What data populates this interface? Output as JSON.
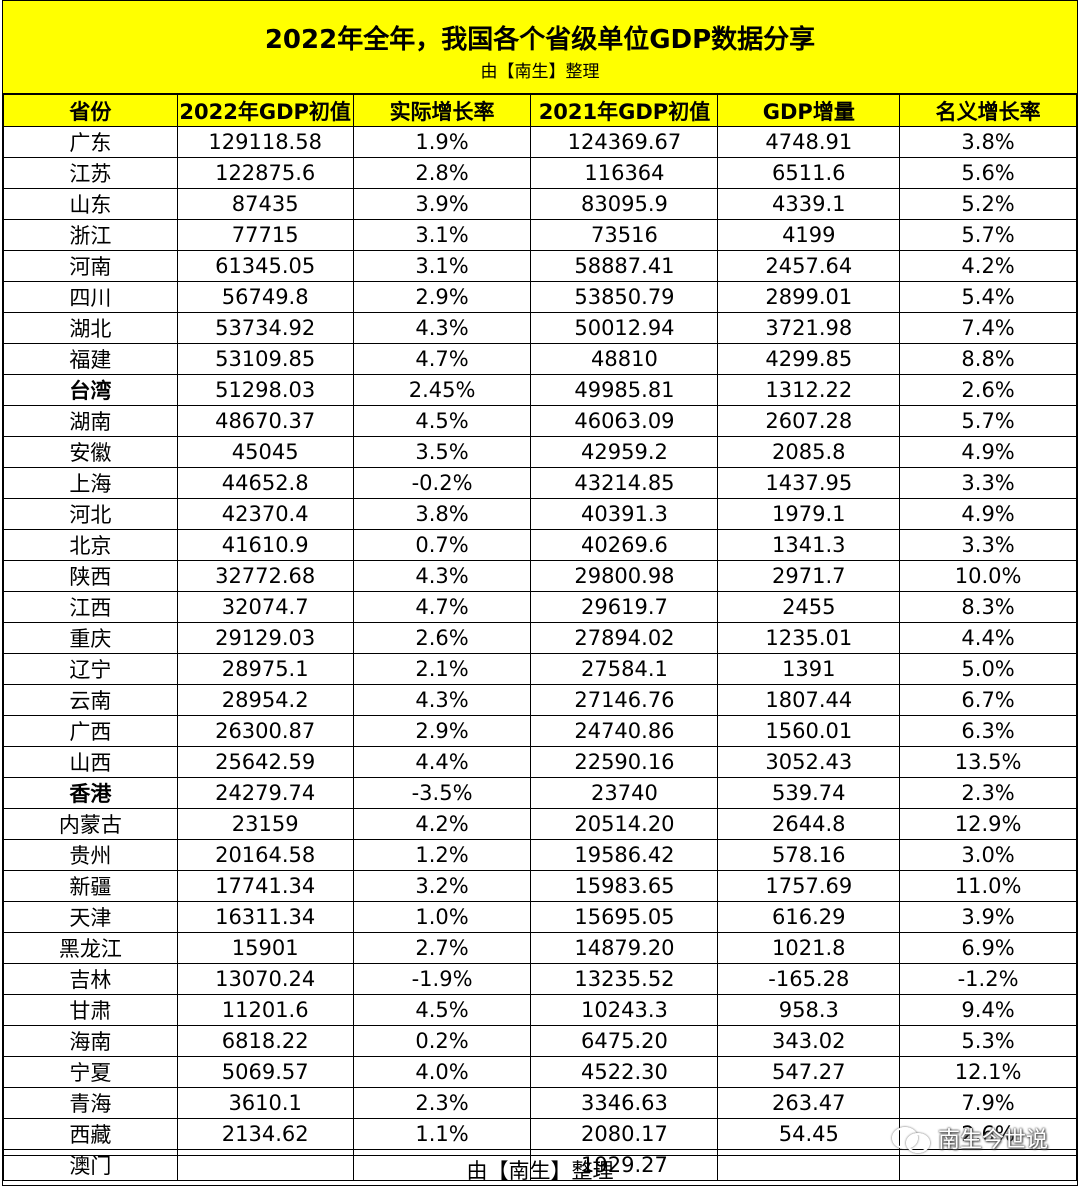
{
  "title": "2022年全年，我国各个省级单位GDP数据分享",
  "subtitle": "由【南生】整理",
  "columns": [
    "省份",
    "2022年GDP初值",
    "实际增长率",
    "2021年GDP初值",
    "GDP增量",
    "名义增长率"
  ],
  "rows": [
    {
      "province": "广东",
      "gdp2022": "129118.58",
      "real_growth": "1.9%",
      "gdp2021": "124369.67",
      "increase": "4748.91",
      "nominal_growth": "3.8%",
      "bold": false
    },
    {
      "province": "江苏",
      "gdp2022": "122875.6",
      "real_growth": "2.8%",
      "gdp2021": "116364",
      "increase": "6511.6",
      "nominal_growth": "5.6%",
      "bold": false
    },
    {
      "province": "山东",
      "gdp2022": "87435",
      "real_growth": "3.9%",
      "gdp2021": "83095.9",
      "increase": "4339.1",
      "nominal_growth": "5.2%",
      "bold": false
    },
    {
      "province": "浙江",
      "gdp2022": "77715",
      "real_growth": "3.1%",
      "gdp2021": "73516",
      "increase": "4199",
      "nominal_growth": "5.7%",
      "bold": false
    },
    {
      "province": "河南",
      "gdp2022": "61345.05",
      "real_growth": "3.1%",
      "gdp2021": "58887.41",
      "increase": "2457.64",
      "nominal_growth": "4.2%",
      "bold": false
    },
    {
      "province": "四川",
      "gdp2022": "56749.8",
      "real_growth": "2.9%",
      "gdp2021": "53850.79",
      "increase": "2899.01",
      "nominal_growth": "5.4%",
      "bold": false
    },
    {
      "province": "湖北",
      "gdp2022": "53734.92",
      "real_growth": "4.3%",
      "gdp2021": "50012.94",
      "increase": "3721.98",
      "nominal_growth": "7.4%",
      "bold": false
    },
    {
      "province": "福建",
      "gdp2022": "53109.85",
      "real_growth": "4.7%",
      "gdp2021": "48810",
      "increase": "4299.85",
      "nominal_growth": "8.8%",
      "bold": false
    },
    {
      "province": "台湾",
      "gdp2022": "51298.03",
      "real_growth": "2.45%",
      "gdp2021": "49985.81",
      "increase": "1312.22",
      "nominal_growth": "2.6%",
      "bold": true
    },
    {
      "province": "湖南",
      "gdp2022": "48670.37",
      "real_growth": "4.5%",
      "gdp2021": "46063.09",
      "increase": "2607.28",
      "nominal_growth": "5.7%",
      "bold": false
    },
    {
      "province": "安徽",
      "gdp2022": "45045",
      "real_growth": "3.5%",
      "gdp2021": "42959.2",
      "increase": "2085.8",
      "nominal_growth": "4.9%",
      "bold": false
    },
    {
      "province": "上海",
      "gdp2022": "44652.8",
      "real_growth": "-0.2%",
      "gdp2021": "43214.85",
      "increase": "1437.95",
      "nominal_growth": "3.3%",
      "bold": false
    },
    {
      "province": "河北",
      "gdp2022": "42370.4",
      "real_growth": "3.8%",
      "gdp2021": "40391.3",
      "increase": "1979.1",
      "nominal_growth": "4.9%",
      "bold": false
    },
    {
      "province": "北京",
      "gdp2022": "41610.9",
      "real_growth": "0.7%",
      "gdp2021": "40269.6",
      "increase": "1341.3",
      "nominal_growth": "3.3%",
      "bold": false
    },
    {
      "province": "陕西",
      "gdp2022": "32772.68",
      "real_growth": "4.3%",
      "gdp2021": "29800.98",
      "increase": "2971.7",
      "nominal_growth": "10.0%",
      "bold": false
    },
    {
      "province": "江西",
      "gdp2022": "32074.7",
      "real_growth": "4.7%",
      "gdp2021": "29619.7",
      "increase": "2455",
      "nominal_growth": "8.3%",
      "bold": false
    },
    {
      "province": "重庆",
      "gdp2022": "29129.03",
      "real_growth": "2.6%",
      "gdp2021": "27894.02",
      "increase": "1235.01",
      "nominal_growth": "4.4%",
      "bold": false
    },
    {
      "province": "辽宁",
      "gdp2022": "28975.1",
      "real_growth": "2.1%",
      "gdp2021": "27584.1",
      "increase": "1391",
      "nominal_growth": "5.0%",
      "bold": false
    },
    {
      "province": "云南",
      "gdp2022": "28954.2",
      "real_growth": "4.3%",
      "gdp2021": "27146.76",
      "increase": "1807.44",
      "nominal_growth": "6.7%",
      "bold": false
    },
    {
      "province": "广西",
      "gdp2022": "26300.87",
      "real_growth": "2.9%",
      "gdp2021": "24740.86",
      "increase": "1560.01",
      "nominal_growth": "6.3%",
      "bold": false
    },
    {
      "province": "山西",
      "gdp2022": "25642.59",
      "real_growth": "4.4%",
      "gdp2021": "22590.16",
      "increase": "3052.43",
      "nominal_growth": "13.5%",
      "bold": false
    },
    {
      "province": "香港",
      "gdp2022": "24279.74",
      "real_growth": "-3.5%",
      "gdp2021": "23740",
      "increase": "539.74",
      "nominal_growth": "2.3%",
      "bold": true
    },
    {
      "province": "内蒙古",
      "gdp2022": "23159",
      "real_growth": "4.2%",
      "gdp2021": "20514.20",
      "increase": "2644.8",
      "nominal_growth": "12.9%",
      "bold": false
    },
    {
      "province": "贵州",
      "gdp2022": "20164.58",
      "real_growth": "1.2%",
      "gdp2021": "19586.42",
      "increase": "578.16",
      "nominal_growth": "3.0%",
      "bold": false
    },
    {
      "province": "新疆",
      "gdp2022": "17741.34",
      "real_growth": "3.2%",
      "gdp2021": "15983.65",
      "increase": "1757.69",
      "nominal_growth": "11.0%",
      "bold": false
    },
    {
      "province": "天津",
      "gdp2022": "16311.34",
      "real_growth": "1.0%",
      "gdp2021": "15695.05",
      "increase": "616.29",
      "nominal_growth": "3.9%",
      "bold": false
    },
    {
      "province": "黑龙江",
      "gdp2022": "15901",
      "real_growth": "2.7%",
      "gdp2021": "14879.20",
      "increase": "1021.8",
      "nominal_growth": "6.9%",
      "bold": false
    },
    {
      "province": "吉林",
      "gdp2022": "13070.24",
      "real_growth": "-1.9%",
      "gdp2021": "13235.52",
      "increase": "-165.28",
      "nominal_growth": "-1.2%",
      "bold": false
    },
    {
      "province": "甘肃",
      "gdp2022": "11201.6",
      "real_growth": "4.5%",
      "gdp2021": "10243.3",
      "increase": "958.3",
      "nominal_growth": "9.4%",
      "bold": false
    },
    {
      "province": "海南",
      "gdp2022": "6818.22",
      "real_growth": "0.2%",
      "gdp2021": "6475.20",
      "increase": "343.02",
      "nominal_growth": "5.3%",
      "bold": false
    },
    {
      "province": "宁夏",
      "gdp2022": "5069.57",
      "real_growth": "4.0%",
      "gdp2021": "4522.30",
      "increase": "547.27",
      "nominal_growth": "12.1%",
      "bold": false
    },
    {
      "province": "青海",
      "gdp2022": "3610.1",
      "real_growth": "2.3%",
      "gdp2021": "3346.63",
      "increase": "263.47",
      "nominal_growth": "7.9%",
      "bold": false
    },
    {
      "province": "西藏",
      "gdp2022": "2134.62",
      "real_growth": "1.1%",
      "gdp2021": "2080.17",
      "increase": "54.45",
      "nominal_growth": "2.6%",
      "bold": false
    },
    {
      "province": "澳门",
      "gdp2022": "",
      "real_growth": "",
      "gdp2021": "1929.27",
      "increase": "",
      "nominal_growth": "",
      "bold": false
    }
  ],
  "footer": "由【南生】整理",
  "watermark": "南生今世说",
  "colors": {
    "header_bg": "#ffff00",
    "border": "#000000",
    "text": "#000000"
  }
}
